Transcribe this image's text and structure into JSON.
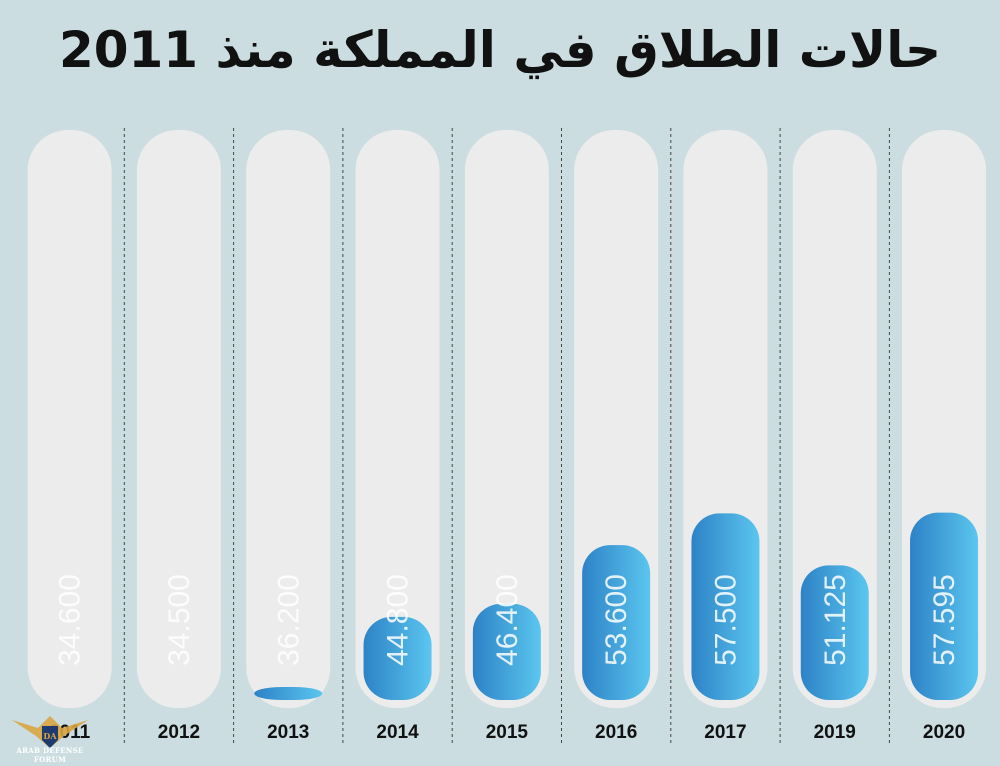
{
  "title": "حالات الطلاق في المملكة منذ 2011",
  "colors": {
    "background": "#cbdde0",
    "track": "#ececec",
    "bar_light": "#5bc6ef",
    "bar_dark": "#2d82c6",
    "divider": "#444444"
  },
  "chart_data": {
    "type": "bar",
    "categories": [
      "2011",
      "2012",
      "2013",
      "2014",
      "2015",
      "2016",
      "2017",
      "2019",
      "2020"
    ],
    "values": [
      34.6,
      34.5,
      36.2,
      44.8,
      46.4,
      53.6,
      57.5,
      51.125,
      57.595
    ],
    "value_labels": [
      "34.600",
      "34.500",
      "36.200",
      "44.800",
      "46.400",
      "53.600",
      "57.500",
      "51.125",
      "57.595"
    ],
    "title": "حالات الطلاق في المملكة منذ 2011",
    "xlabel": "",
    "ylabel": "",
    "grid": false
  },
  "watermark": {
    "logo_text": "ARAB DEFENSE FORUM"
  }
}
